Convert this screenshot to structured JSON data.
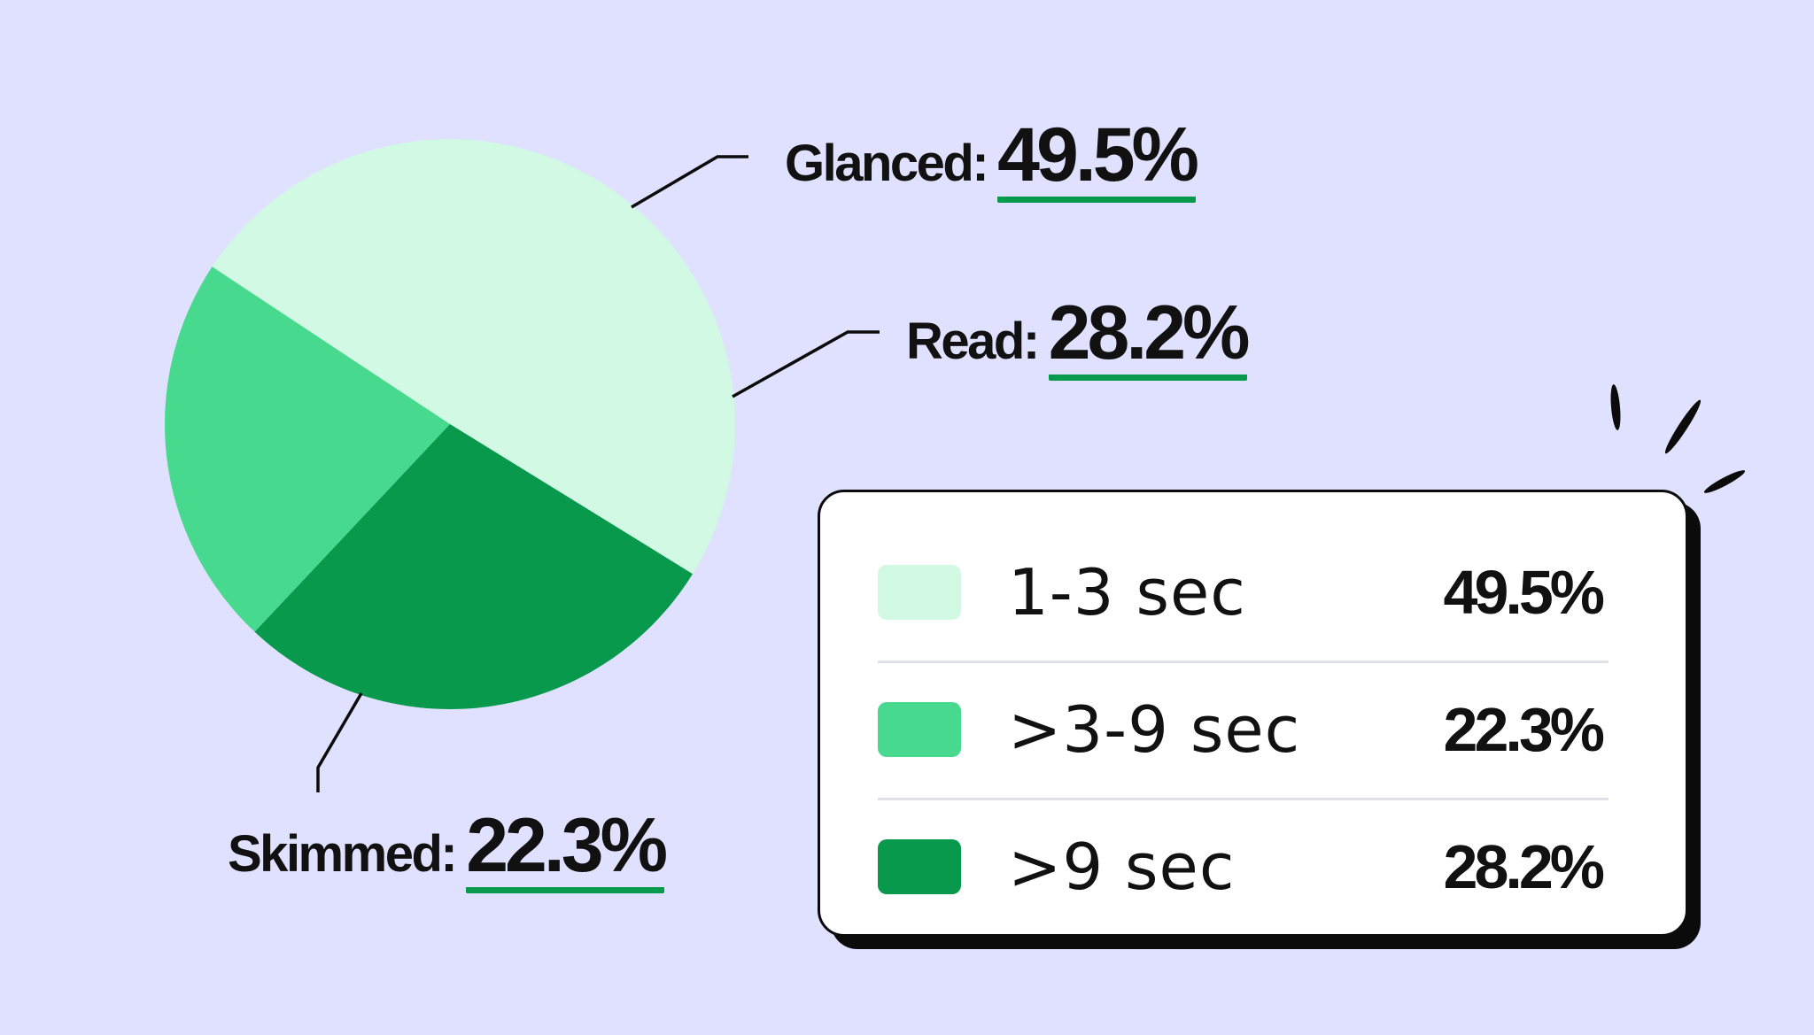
{
  "chart_data": {
    "type": "pie",
    "slices": [
      {
        "name": "Glanced",
        "legend_label": "1-3 sec",
        "value": 49.5,
        "value_label": "49.5%",
        "color": "#d2f9e4"
      },
      {
        "name": "Read",
        "legend_label": ">9 sec",
        "value": 28.2,
        "value_label": "28.2%",
        "color": "#08994c"
      },
      {
        "name": "Skimmed",
        "legend_label": ">3-9 sec",
        "value": 22.3,
        "value_label": "22.3%",
        "color": "#47d98e"
      }
    ],
    "legend": {
      "placement": "bottom-right",
      "items": [
        {
          "label": "1-3 sec",
          "value": "49.5%",
          "color": "#d2f9e4"
        },
        {
          "label": ">3-9 sec",
          "value": "22.3%",
          "color": "#47d98e"
        },
        {
          "label": ">9 sec",
          "value": "28.2%",
          "color": "#08994c"
        }
      ]
    }
  },
  "callouts": {
    "glanced": {
      "label": "Glanced:",
      "value": "49.5%"
    },
    "read": {
      "label": "Read:",
      "value": "28.2%"
    },
    "skimmed": {
      "label": "Skimmed:",
      "value": "22.3%"
    }
  },
  "colors": {
    "background": "#dfe1ff",
    "underline": "#089a4c",
    "ink": "#0b0b0b"
  }
}
